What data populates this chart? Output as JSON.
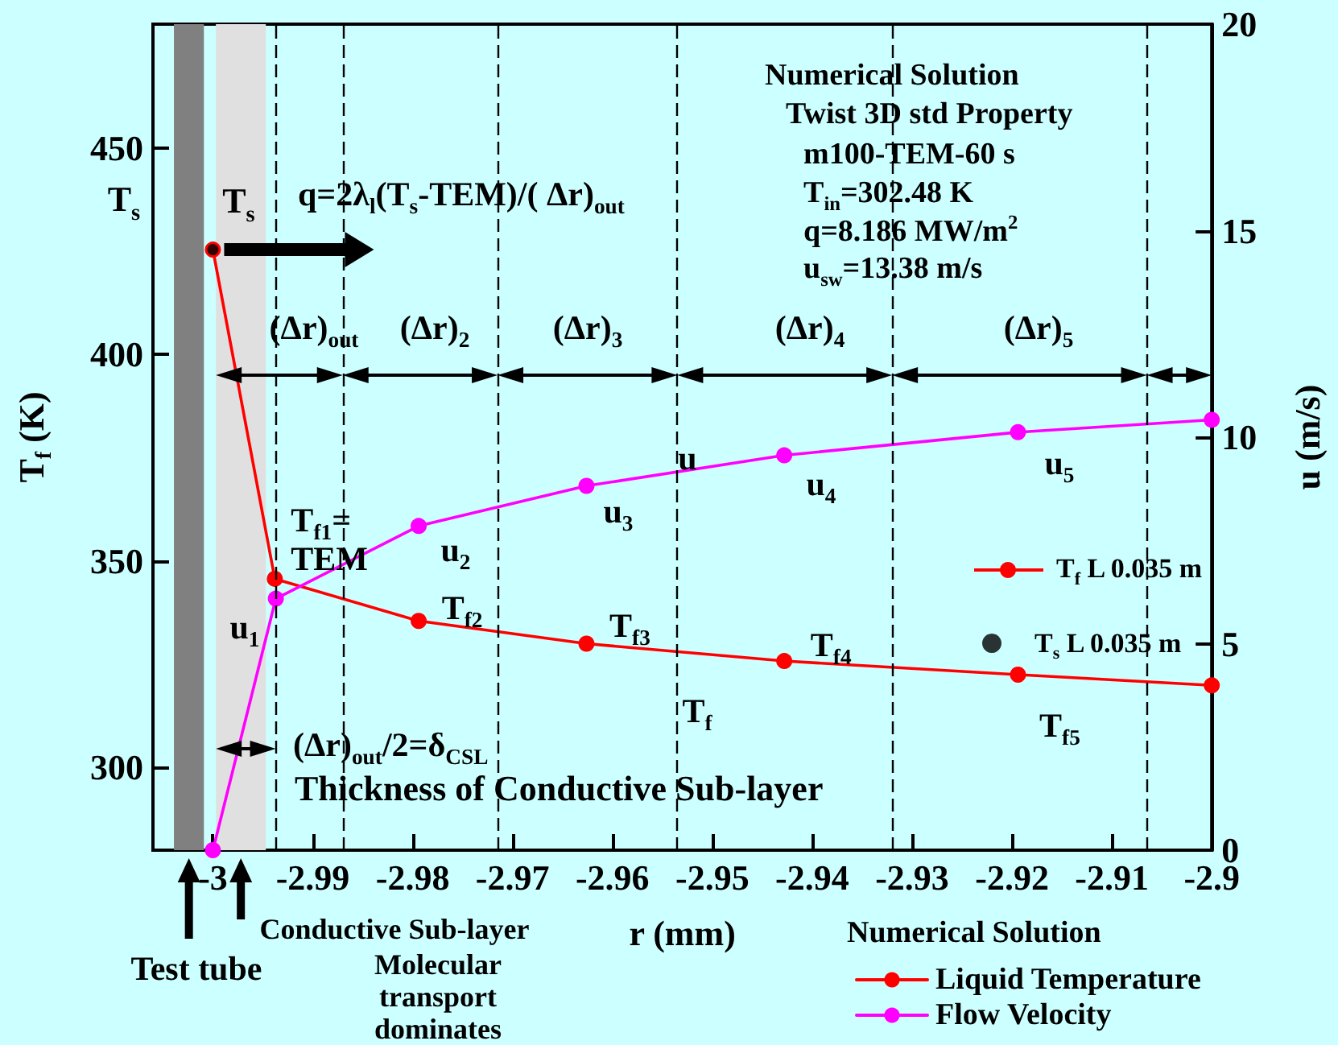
{
  "chart_data": {
    "type": "line",
    "xlabel": "r (mm)",
    "ylabel": "T$_{f}$ (K)",
    "y2label": "u (m/s)",
    "xlim": [
      -3.006,
      -2.9
    ],
    "xticks": [
      -3,
      -2.99,
      -2.98,
      -2.97,
      -2.96,
      -2.95,
      -2.94,
      -2.93,
      -2.92,
      -2.91,
      -2.9
    ],
    "ylim": [
      280,
      480
    ],
    "yticks": [
      300,
      350,
      400,
      450
    ],
    "y2lim": [
      0,
      20
    ],
    "y2ticks": [
      0,
      5,
      10,
      15,
      20
    ],
    "marker": "circle",
    "legend": "bottom right",
    "legend_title": "Numerical Solution",
    "series": [
      {
        "name": "Liquid Temperature",
        "color": "#ff0000",
        "x": [
          -3,
          -2.9938,
          -2.9794,
          -2.9626,
          -2.9428,
          -2.9194,
          -2.9
        ],
        "values": [
          425.4,
          345.7,
          335.5,
          330.0,
          325.8,
          322.5,
          319.9
        ]
      },
      {
        "name": "Flow Velocity",
        "color": "#ff00ff",
        "axis": "y2",
        "x": [
          -3,
          -2.9937,
          -2.9794,
          -2.9626,
          -2.9428,
          -2.9194,
          -2.9
        ],
        "values": [
          0,
          6.09,
          7.85,
          8.82,
          9.56,
          10.12,
          10.42
        ]
      },
      {
        "name": "T$_{s}$ L 0.035 m",
        "type": "scatter",
        "color": "#000000",
        "x": [
          -3
        ],
        "values": [
          425.4
        ]
      }
    ],
    "bands": [
      {
        "axis": "x",
        "from": -3.0039,
        "to": -3.0009,
        "color": "#808080"
      },
      {
        "axis": "x",
        "from": -2.9997,
        "to": -2.9947,
        "color": "#e0e0e0"
      }
    ],
    "ref_lines": [
      {
        "axis": "x",
        "value": -2.9937,
        "line_style": "dashed"
      },
      {
        "axis": "x",
        "value": -2.987,
        "line_style": "dashed"
      },
      {
        "axis": "x",
        "value": -2.9715,
        "line_style": "dashed"
      },
      {
        "axis": "x",
        "value": -2.9535,
        "line_style": "dashed"
      },
      {
        "axis": "x",
        "value": -2.932,
        "line_style": "dashed"
      },
      {
        "axis": "x",
        "value": -2.9065,
        "line_style": "dashed"
      }
    ],
    "annotations": [
      "T$_{s}$",
      {
        "text": "T$_{s}$",
        "x": -3,
        "y": 425.4
      },
      "q=2λ$_{l}$(T$_{s}$-TEM)/( Δr)$_{out}$",
      "Numerical Solution",
      "Twist 3D std Property",
      "m100-TEM-60 s",
      "T$_{in}$=302.48 K",
      "q=8.186 MW/m$^{2}$",
      "u$_{sw}$=13.38 m/s",
      "(Δr)$_{out}$",
      "(Δr)$_{2}$",
      "(Δr)$_{3}$",
      "(Δr)$_{4}$",
      "(Δr)$_{5}$",
      "u",
      "u$_{1}$",
      "u$_{2}$",
      "u$_{3}$",
      "u$_{4}$",
      "u$_{5}$",
      {
        "text": "T$_{f1}$=\nTEM",
        "x": -2.9938,
        "y": 345.7
      },
      {
        "text": "T$_{f2}$",
        "x": -2.9794,
        "y": 335.5
      },
      {
        "text": "T$_{f3}$",
        "x": -2.9626,
        "y": 330.0
      },
      {
        "text": "T$_{f4}$",
        "x": -2.9428,
        "y": 325.8
      },
      {
        "text": "T$_{f5}$",
        "x": -2.9194,
        "y": 322.5
      },
      "T$_{f}$",
      "(Δr)$_{out}$/2=δ$_{CSL}$",
      "Thickness of Conductive Sub-layer",
      "T$_{f}$ L 0.035 m",
      "Test tube",
      "Conductive Sub-layer",
      "Molecular transport dominates"
    ]
  }
}
